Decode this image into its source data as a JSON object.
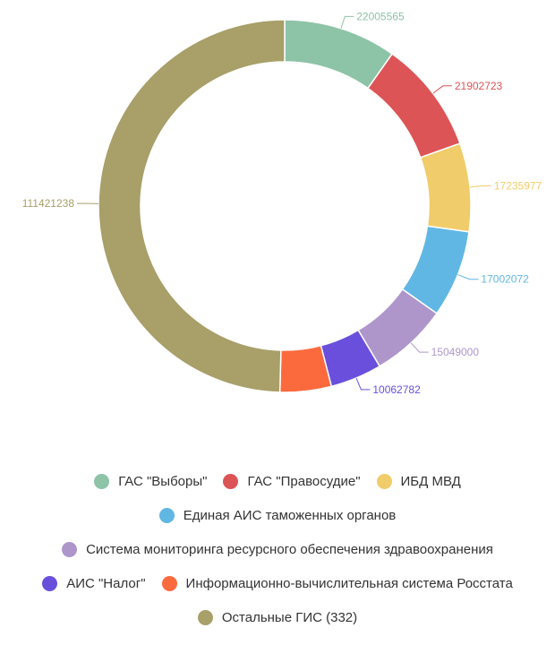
{
  "chart_data": {
    "type": "pie",
    "variant": "donut",
    "title": "",
    "legend_position": "bottom",
    "slices": [
      {
        "name": "ГАС \"Выборы\"",
        "value": 22005565,
        "label": "22005565",
        "color": "#8dc3a7"
      },
      {
        "name": "ГАС \"Правосудие\"",
        "value": 21902723,
        "label": "21902723",
        "color": "#dd5456"
      },
      {
        "name": "ИБД МВД",
        "value": 17235977,
        "label": "17235977",
        "color": "#f0cc6a"
      },
      {
        "name": "Единая АИС таможенных органов",
        "value": 17002072,
        "label": "17002072",
        "color": "#60b7e3"
      },
      {
        "name": "Система мониторинга ресурсного обеспечения здравоохранения",
        "value": 15049000,
        "label": "15049000",
        "color": "#ae96cb"
      },
      {
        "name": "АИС \"Налог\"",
        "value": 10062782,
        "label": "10062782",
        "color": "#6a4fdc"
      },
      {
        "name": "Информационно-вычислительная система Росстата",
        "value": 10000000,
        "label": "",
        "color": "#fb6a3d"
      },
      {
        "name": "Остальные ГИС (332)",
        "value": 111421238,
        "label": "111421238",
        "color": "#a89f69"
      }
    ]
  },
  "legend": {
    "rows": [
      [
        0,
        1,
        2
      ],
      [
        3
      ],
      [
        4
      ],
      [
        5,
        6
      ],
      [
        7
      ]
    ]
  }
}
